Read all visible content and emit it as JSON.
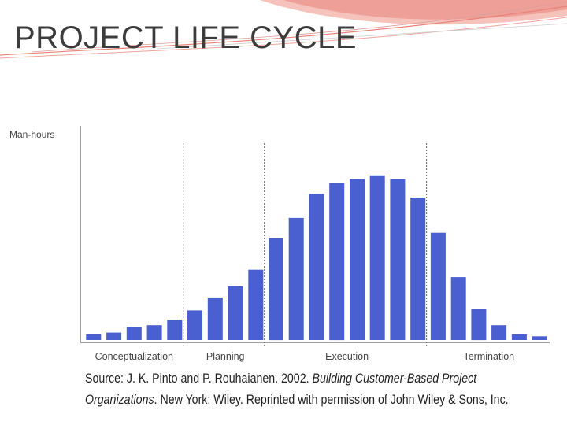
{
  "slide": {
    "title": "PROJECT LIFE CYCLE"
  },
  "chart_data": {
    "type": "bar",
    "ylabel": "Man-hours",
    "xlabel": "",
    "values": [
      3,
      4,
      7,
      8,
      11,
      16,
      23,
      29,
      38,
      55,
      66,
      79,
      85,
      87,
      89,
      87,
      77,
      58,
      34,
      17,
      8,
      3,
      2
    ],
    "ylim": [
      0,
      100
    ],
    "bar_color": "#4a5fd0",
    "phases": [
      {
        "name": "Conceptualization",
        "start": 0,
        "end": 5
      },
      {
        "name": "Planning",
        "start": 5,
        "end": 9
      },
      {
        "name": "Execution",
        "start": 9,
        "end": 17
      },
      {
        "name": "Termination",
        "start": 17,
        "end": 23
      }
    ],
    "grid": false
  },
  "source": {
    "line1_a": "Source: J. K. Pinto and P. Rouhaianen. 2002. ",
    "line1_b": "Building Customer-Based Project",
    "line2_a": "Organizations",
    "line2_b": ". New York: Wiley. Reprinted with permission of John Wiley & Sons, Inc."
  },
  "colors": {
    "deco_pink": "#e8837a",
    "deco_light": "#f3b3ad"
  }
}
